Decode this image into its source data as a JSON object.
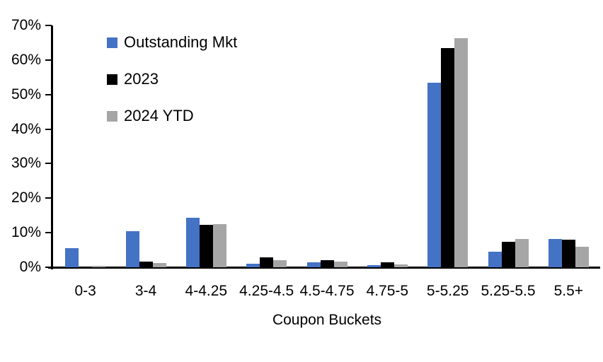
{
  "chart_data": {
    "type": "bar",
    "title": "",
    "xlabel": "Coupon Buckets",
    "ylabel": "",
    "ylim": [
      0,
      70
    ],
    "ytick_step": 10,
    "ytick_labels": [
      "0%",
      "10%",
      "20%",
      "30%",
      "40%",
      "50%",
      "60%",
      "70%"
    ],
    "grid": false,
    "legend_position": "top-left-inside",
    "categories": [
      "0-3",
      "3-4",
      "4-4.25",
      "4.25-4.5",
      "4.5-4.75",
      "4.75-5",
      "5-5.25",
      "5.25-5.5",
      "5.5+"
    ],
    "series": [
      {
        "name": "Outstanding Mkt",
        "color": "#4472C4",
        "values": [
          5.5,
          10.5,
          14.4,
          1.1,
          1.4,
          0.7,
          53.5,
          4.6,
          8.1
        ]
      },
      {
        "name": "2023",
        "color": "#000000",
        "values": [
          0.3,
          1.7,
          12.2,
          2.9,
          2.0,
          1.5,
          63.5,
          7.4,
          8.0
        ]
      },
      {
        "name": "2024 YTD",
        "color": "#A6A6A6",
        "values": [
          0.5,
          1.2,
          12.5,
          2.0,
          1.6,
          0.9,
          66.3,
          8.2,
          6.0
        ]
      }
    ]
  },
  "colors": {
    "axis": "#000000",
    "text": "#000000",
    "background": "#FFFFFF"
  }
}
